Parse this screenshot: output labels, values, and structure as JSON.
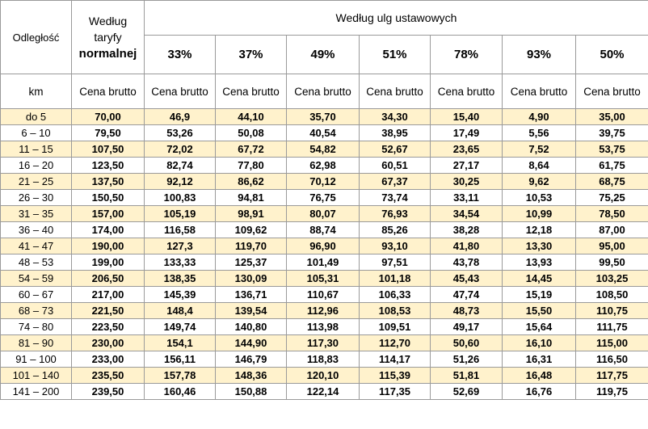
{
  "header": {
    "distance_label": "Odległość",
    "tariff_line1": "Według",
    "tariff_line2": "taryfy",
    "tariff_line3": "normalnej",
    "discount_group": "Według ulg ustawowych",
    "unit_label": "km",
    "price_label": "Cena brutto",
    "percents": [
      "33%",
      "37%",
      "49%",
      "51%",
      "78%",
      "93%",
      "50%"
    ]
  },
  "rows": [
    [
      "do 5",
      "70,00",
      "46,9",
      "44,10",
      "35,70",
      "34,30",
      "15,40",
      "4,90",
      "35,00"
    ],
    [
      "6 – 10",
      "79,50",
      "53,26",
      "50,08",
      "40,54",
      "38,95",
      "17,49",
      "5,56",
      "39,75"
    ],
    [
      "11 – 15",
      "107,50",
      "72,02",
      "67,72",
      "54,82",
      "52,67",
      "23,65",
      "7,52",
      "53,75"
    ],
    [
      "16 – 20",
      "123,50",
      "82,74",
      "77,80",
      "62,98",
      "60,51",
      "27,17",
      "8,64",
      "61,75"
    ],
    [
      "21 – 25",
      "137,50",
      "92,12",
      "86,62",
      "70,12",
      "67,37",
      "30,25",
      "9,62",
      "68,75"
    ],
    [
      "26 – 30",
      "150,50",
      "100,83",
      "94,81",
      "76,75",
      "73,74",
      "33,11",
      "10,53",
      "75,25"
    ],
    [
      "31 – 35",
      "157,00",
      "105,19",
      "98,91",
      "80,07",
      "76,93",
      "34,54",
      "10,99",
      "78,50"
    ],
    [
      "36 – 40",
      "174,00",
      "116,58",
      "109,62",
      "88,74",
      "85,26",
      "38,28",
      "12,18",
      "87,00"
    ],
    [
      "41 – 47",
      "190,00",
      "127,3",
      "119,70",
      "96,90",
      "93,10",
      "41,80",
      "13,30",
      "95,00"
    ],
    [
      "48 – 53",
      "199,00",
      "133,33",
      "125,37",
      "101,49",
      "97,51",
      "43,78",
      "13,93",
      "99,50"
    ],
    [
      "54 – 59",
      "206,50",
      "138,35",
      "130,09",
      "105,31",
      "101,18",
      "45,43",
      "14,45",
      "103,25"
    ],
    [
      "60 – 67",
      "217,00",
      "145,39",
      "136,71",
      "110,67",
      "106,33",
      "47,74",
      "15,19",
      "108,50"
    ],
    [
      "68 – 73",
      "221,50",
      "148,4",
      "139,54",
      "112,96",
      "108,53",
      "48,73",
      "15,50",
      "110,75"
    ],
    [
      "74 – 80",
      "223,50",
      "149,74",
      "140,80",
      "113,98",
      "109,51",
      "49,17",
      "15,64",
      "111,75"
    ],
    [
      "81 – 90",
      "230,00",
      "154,1",
      "144,90",
      "117,30",
      "112,70",
      "50,60",
      "16,10",
      "115,00"
    ],
    [
      "91 – 100",
      "233,00",
      "156,11",
      "146,79",
      "118,83",
      "114,17",
      "51,26",
      "16,31",
      "116,50"
    ],
    [
      "101 – 140",
      "235,50",
      "157,78",
      "148,36",
      "120,10",
      "115,39",
      "51,81",
      "16,48",
      "117,75"
    ],
    [
      "141 – 200",
      "239,50",
      "160,46",
      "150,88",
      "122,14",
      "117,35",
      "52,69",
      "16,76",
      "119,75"
    ]
  ]
}
